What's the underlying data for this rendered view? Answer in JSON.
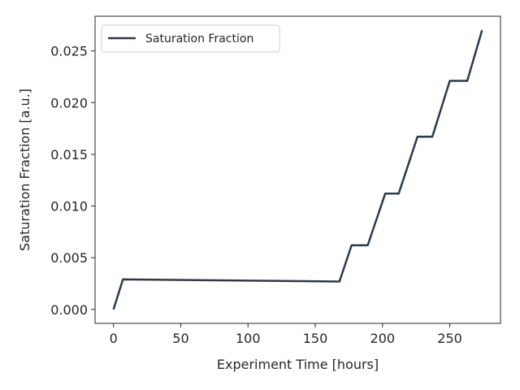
{
  "chart_data": {
    "type": "line",
    "title": "",
    "xlabel": "Experiment Time [hours]",
    "ylabel": "Saturation Fraction [a.u.]",
    "xlim": [
      -13.7,
      287.7
    ],
    "ylim": [
      -0.00135,
      0.02835
    ],
    "xticks": [
      0,
      50,
      100,
      150,
      200,
      250
    ],
    "xtick_labels": [
      "0",
      "50",
      "100",
      "150",
      "200",
      "250"
    ],
    "yticks": [
      0.0,
      0.005,
      0.01,
      0.015,
      0.02,
      0.025
    ],
    "ytick_labels": [
      "0.000",
      "0.005",
      "0.010",
      "0.015",
      "0.020",
      "0.025"
    ],
    "grid": false,
    "legend_position": "top-left",
    "series": [
      {
        "name": "Saturation Fraction",
        "color": "#2b3a4a",
        "x": [
          0,
          7,
          168,
          177,
          189,
          202,
          212,
          226,
          237,
          250,
          263,
          274
        ],
        "y": [
          0.0,
          0.0029,
          0.0027,
          0.0062,
          0.0062,
          0.0112,
          0.0112,
          0.0167,
          0.0167,
          0.0221,
          0.0221,
          0.027
        ]
      }
    ]
  }
}
